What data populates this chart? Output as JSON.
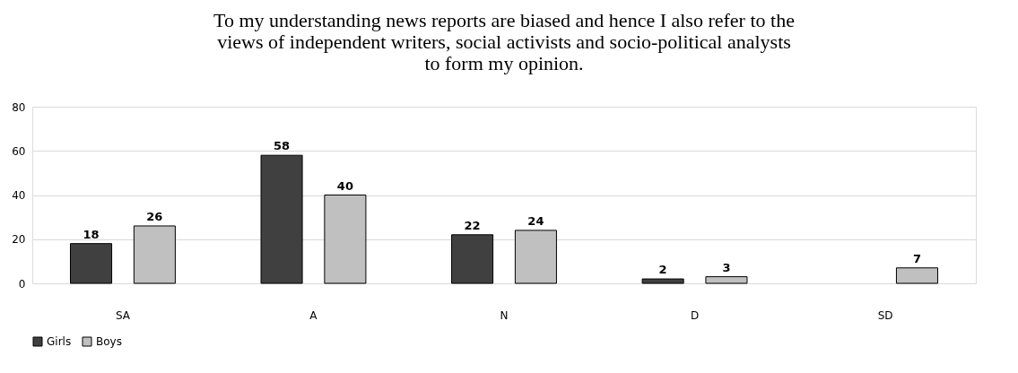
{
  "chart_data": {
    "type": "bar",
    "title": [
      "To my understanding news reports are biased and hence I also refer to the",
      "views of independent writers, social activists and socio-political analysts",
      "to form my opinion."
    ],
    "categories": [
      "SA",
      "A",
      "N",
      "D",
      "SD"
    ],
    "series": [
      {
        "name": "Girls",
        "color": "#404040",
        "values": [
          18,
          58,
          22,
          2,
          null
        ]
      },
      {
        "name": "Boys",
        "color": "#c0c0c0",
        "values": [
          26,
          40,
          24,
          3,
          7
        ]
      }
    ],
    "ylim": [
      0,
      80
    ],
    "yticks": [
      0,
      20,
      40,
      60,
      80
    ],
    "grid": "y",
    "legend": "bottom",
    "data_labels": true
  }
}
